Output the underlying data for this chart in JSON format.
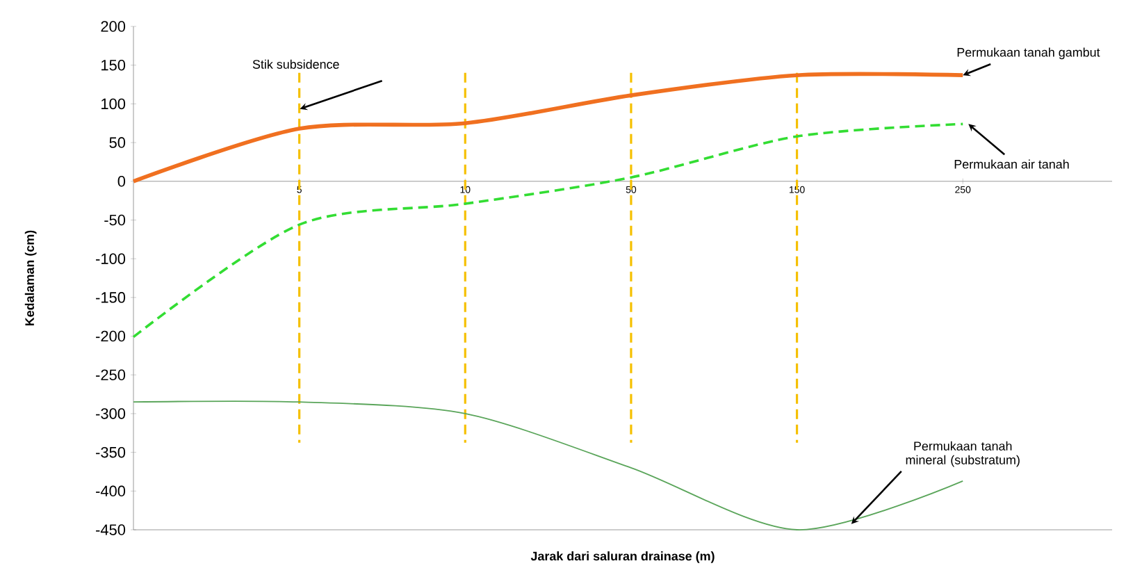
{
  "chart_data": {
    "type": "line",
    "xlabel": "Jarak dari saluran drainase (m)",
    "ylabel": "Kedalaman (cm)",
    "categories": [
      "0",
      "5",
      "10",
      "50",
      "150",
      "250"
    ],
    "series": [
      {
        "name": "Permukaan tanah gambut",
        "color": "#f07020",
        "values": [
          0,
          68,
          75,
          111,
          137,
          137
        ],
        "line_style": "solid"
      },
      {
        "name": "Permukaan air tanah",
        "color": "#33dd33",
        "values": [
          -201,
          -56,
          -29,
          5,
          58,
          74
        ],
        "line_style": "dashed"
      },
      {
        "name": "Permukaan tanah mineral (substratum)",
        "color": "#5aa55a",
        "values": [
          -285,
          -285,
          -300,
          -370,
          -450,
          -387
        ],
        "line_style": "solid"
      }
    ],
    "ylim": [
      -450,
      200
    ],
    "yticks": [
      -450,
      -400,
      -350,
      -300,
      -250,
      -200,
      -150,
      -100,
      -50,
      0,
      50,
      100,
      150,
      200
    ],
    "ref_lines": [
      {
        "axis": "x",
        "value": "5",
        "color": "#f5c000",
        "line_style": "dashed"
      },
      {
        "axis": "x",
        "value": "10",
        "color": "#f5c000",
        "line_style": "dashed"
      },
      {
        "axis": "x",
        "value": "50",
        "color": "#f5c000",
        "line_style": "dashed"
      },
      {
        "axis": "x",
        "value": "150",
        "color": "#f5c000",
        "line_style": "dashed"
      }
    ],
    "annotations": [
      "Stik subsidence"
    ],
    "grid": false
  }
}
